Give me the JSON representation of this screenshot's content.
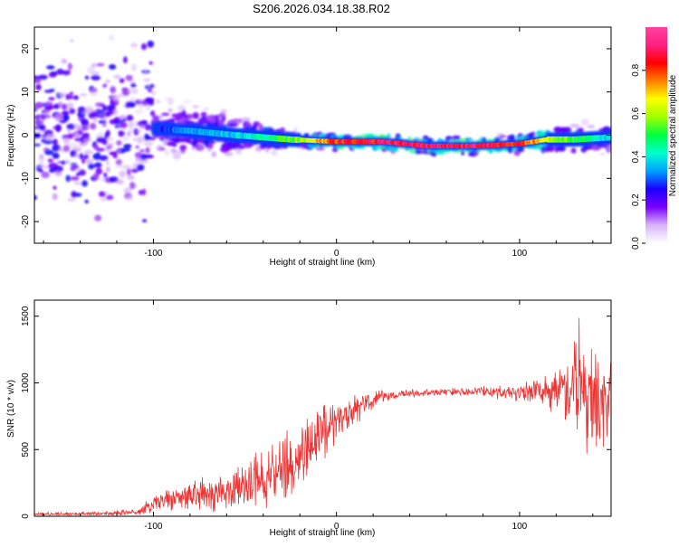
{
  "title": "S206.2026.034.18.38.R02",
  "chart_data": [
    {
      "type": "heatmap",
      "name": "spectrogram",
      "xlabel": "Height of straight line (km)",
      "ylabel": "Frequency (Hz)",
      "xlim": [
        -165,
        150
      ],
      "ylim": [
        -25,
        25
      ],
      "xticks": [
        -100,
        0,
        100
      ],
      "yticks": [
        -20,
        -10,
        0,
        10,
        20
      ],
      "colorbar": {
        "label": "Normalized spectral amplitude",
        "range": [
          0,
          1
        ],
        "ticks": [
          0.0,
          0.2,
          0.4,
          0.6,
          0.8
        ],
        "tick_labels": [
          "0.0",
          "0.2",
          "0.4",
          "0.6",
          "0.8"
        ],
        "colormap": [
          "#ffffff",
          "#d8b4f8",
          "#7a00ff",
          "#1a00ff",
          "#00a0ff",
          "#00ffd0",
          "#00ff40",
          "#a0ff00",
          "#ffff00",
          "#ff8000",
          "#ff0000",
          "#ff2080",
          "#ff40a0"
        ]
      },
      "ridge_frequency": [
        {
          "x": -100,
          "y": 1.5
        },
        {
          "x": -80,
          "y": 1.0
        },
        {
          "x": -55,
          "y": 0.0
        },
        {
          "x": -25,
          "y": -1.0
        },
        {
          "x": 0,
          "y": -1.5
        },
        {
          "x": 25,
          "y": -1.5
        },
        {
          "x": 50,
          "y": -2.5
        },
        {
          "x": 75,
          "y": -2.5
        },
        {
          "x": 100,
          "y": -2.0
        },
        {
          "x": 115,
          "y": -1.0
        },
        {
          "x": 130,
          "y": -1.0
        },
        {
          "x": 150,
          "y": -0.5
        }
      ],
      "peak_amplitude": [
        {
          "x": -165,
          "v": 0.2
        },
        {
          "x": -100,
          "v": 0.25
        },
        {
          "x": -80,
          "v": 0.35
        },
        {
          "x": -50,
          "v": 0.4
        },
        {
          "x": -20,
          "v": 0.6
        },
        {
          "x": 0,
          "v": 0.85
        },
        {
          "x": 40,
          "v": 0.95
        },
        {
          "x": 70,
          "v": 0.95
        },
        {
          "x": 100,
          "v": 0.9
        },
        {
          "x": 120,
          "v": 0.6
        },
        {
          "x": 150,
          "v": 0.4
        }
      ]
    },
    {
      "type": "line",
      "name": "snr",
      "xlabel": "Height of straight line (km)",
      "ylabel": "SNR (10 * v/v)",
      "xlim": [
        -165,
        150
      ],
      "ylim": [
        0,
        1620
      ],
      "xticks": [
        -100,
        0,
        100
      ],
      "yticks": [
        0,
        500,
        1000,
        1500
      ],
      "color": "#ee3333",
      "series": [
        {
          "name": "SNR",
          "envelope": [
            {
              "x": -165,
              "mean": 15,
              "spread": 10
            },
            {
              "x": -130,
              "mean": 20,
              "spread": 15
            },
            {
              "x": -110,
              "mean": 30,
              "spread": 25
            },
            {
              "x": -95,
              "mean": 110,
              "spread": 80
            },
            {
              "x": -80,
              "mean": 160,
              "spread": 110
            },
            {
              "x": -60,
              "mean": 180,
              "spread": 140
            },
            {
              "x": -40,
              "mean": 280,
              "spread": 200
            },
            {
              "x": -25,
              "mean": 380,
              "spread": 260
            },
            {
              "x": -10,
              "mean": 600,
              "spread": 260
            },
            {
              "x": 0,
              "mean": 720,
              "spread": 180
            },
            {
              "x": 10,
              "mean": 800,
              "spread": 120
            },
            {
              "x": 25,
              "mean": 900,
              "spread": 40
            },
            {
              "x": 50,
              "mean": 930,
              "spread": 25
            },
            {
              "x": 75,
              "mean": 935,
              "spread": 35
            },
            {
              "x": 100,
              "mean": 930,
              "spread": 60
            },
            {
              "x": 115,
              "mean": 950,
              "spread": 120
            },
            {
              "x": 130,
              "mean": 900,
              "spread": 350
            },
            {
              "x": 150,
              "mean": 850,
              "spread": 420
            }
          ]
        }
      ]
    }
  ]
}
